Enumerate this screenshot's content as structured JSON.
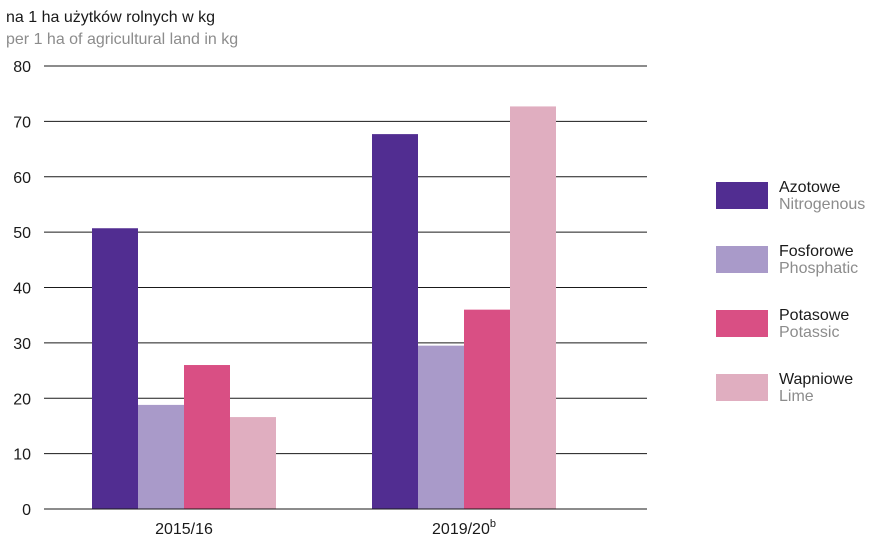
{
  "chart_data": {
    "type": "bar",
    "title_pl": "na 1 ha użytków rolnych w kg",
    "title_en": "per 1 ha of agricultural land in kg",
    "categories": [
      "2015/16",
      "2019/20"
    ],
    "category_superscripts": [
      "",
      "b"
    ],
    "ylim": [
      0,
      80
    ],
    "yticks": [
      0,
      10,
      20,
      30,
      40,
      50,
      60,
      70,
      80
    ],
    "grid": true,
    "legend_position": "right",
    "series": [
      {
        "name": "Azotowe",
        "name_en": "Nitrogenous",
        "color": "#512d91",
        "values": [
          50.7,
          67.7
        ]
      },
      {
        "name": "Fosforowe",
        "name_en": "Phosphatic",
        "color": "#a99ac9",
        "values": [
          18.8,
          29.5
        ]
      },
      {
        "name": "Potasowe",
        "name_en": "Potassic",
        "color": "#d94f84",
        "values": [
          26.0,
          36.0
        ]
      },
      {
        "name": "Wapniowe",
        "name_en": "Lime",
        "color": "#e0aec0",
        "values": [
          16.6,
          72.7
        ]
      }
    ]
  }
}
